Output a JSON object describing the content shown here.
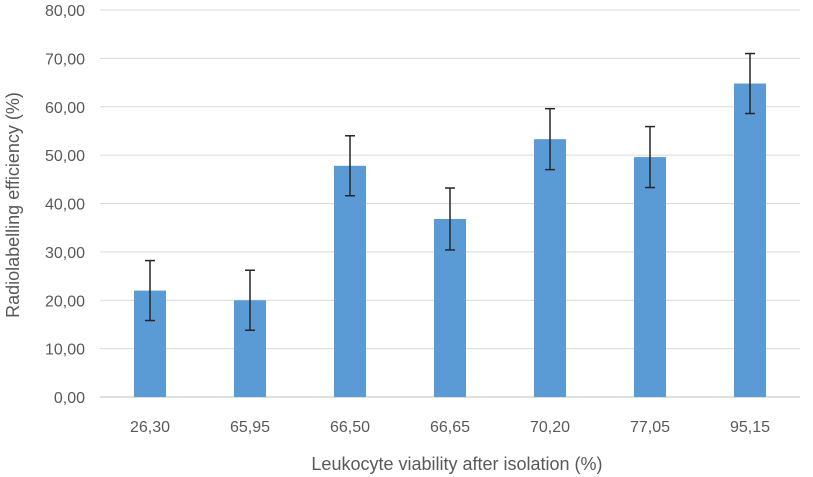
{
  "chart_data": {
    "type": "bar",
    "title": "",
    "xlabel": "Leukocyte viability after isolation (%)",
    "ylabel": "Radiolabelling efficiency (%)",
    "categories": [
      "26,30",
      "65,95",
      "66,50",
      "66,65",
      "70,20",
      "77,05",
      "95,15"
    ],
    "values": [
      22.0,
      20.0,
      47.8,
      36.8,
      53.3,
      49.6,
      64.8
    ],
    "error": [
      6.2,
      6.2,
      6.2,
      6.4,
      6.3,
      6.3,
      6.2
    ],
    "ylim": [
      0,
      80
    ],
    "yticks": [
      "0,00",
      "10,00",
      "20,00",
      "30,00",
      "40,00",
      "50,00",
      "60,00",
      "70,00",
      "80,00"
    ],
    "ytick_values": [
      0,
      10,
      20,
      30,
      40,
      50,
      60,
      70,
      80
    ],
    "bar_color": "#5b9bd5",
    "grid": true,
    "legend": "none"
  }
}
